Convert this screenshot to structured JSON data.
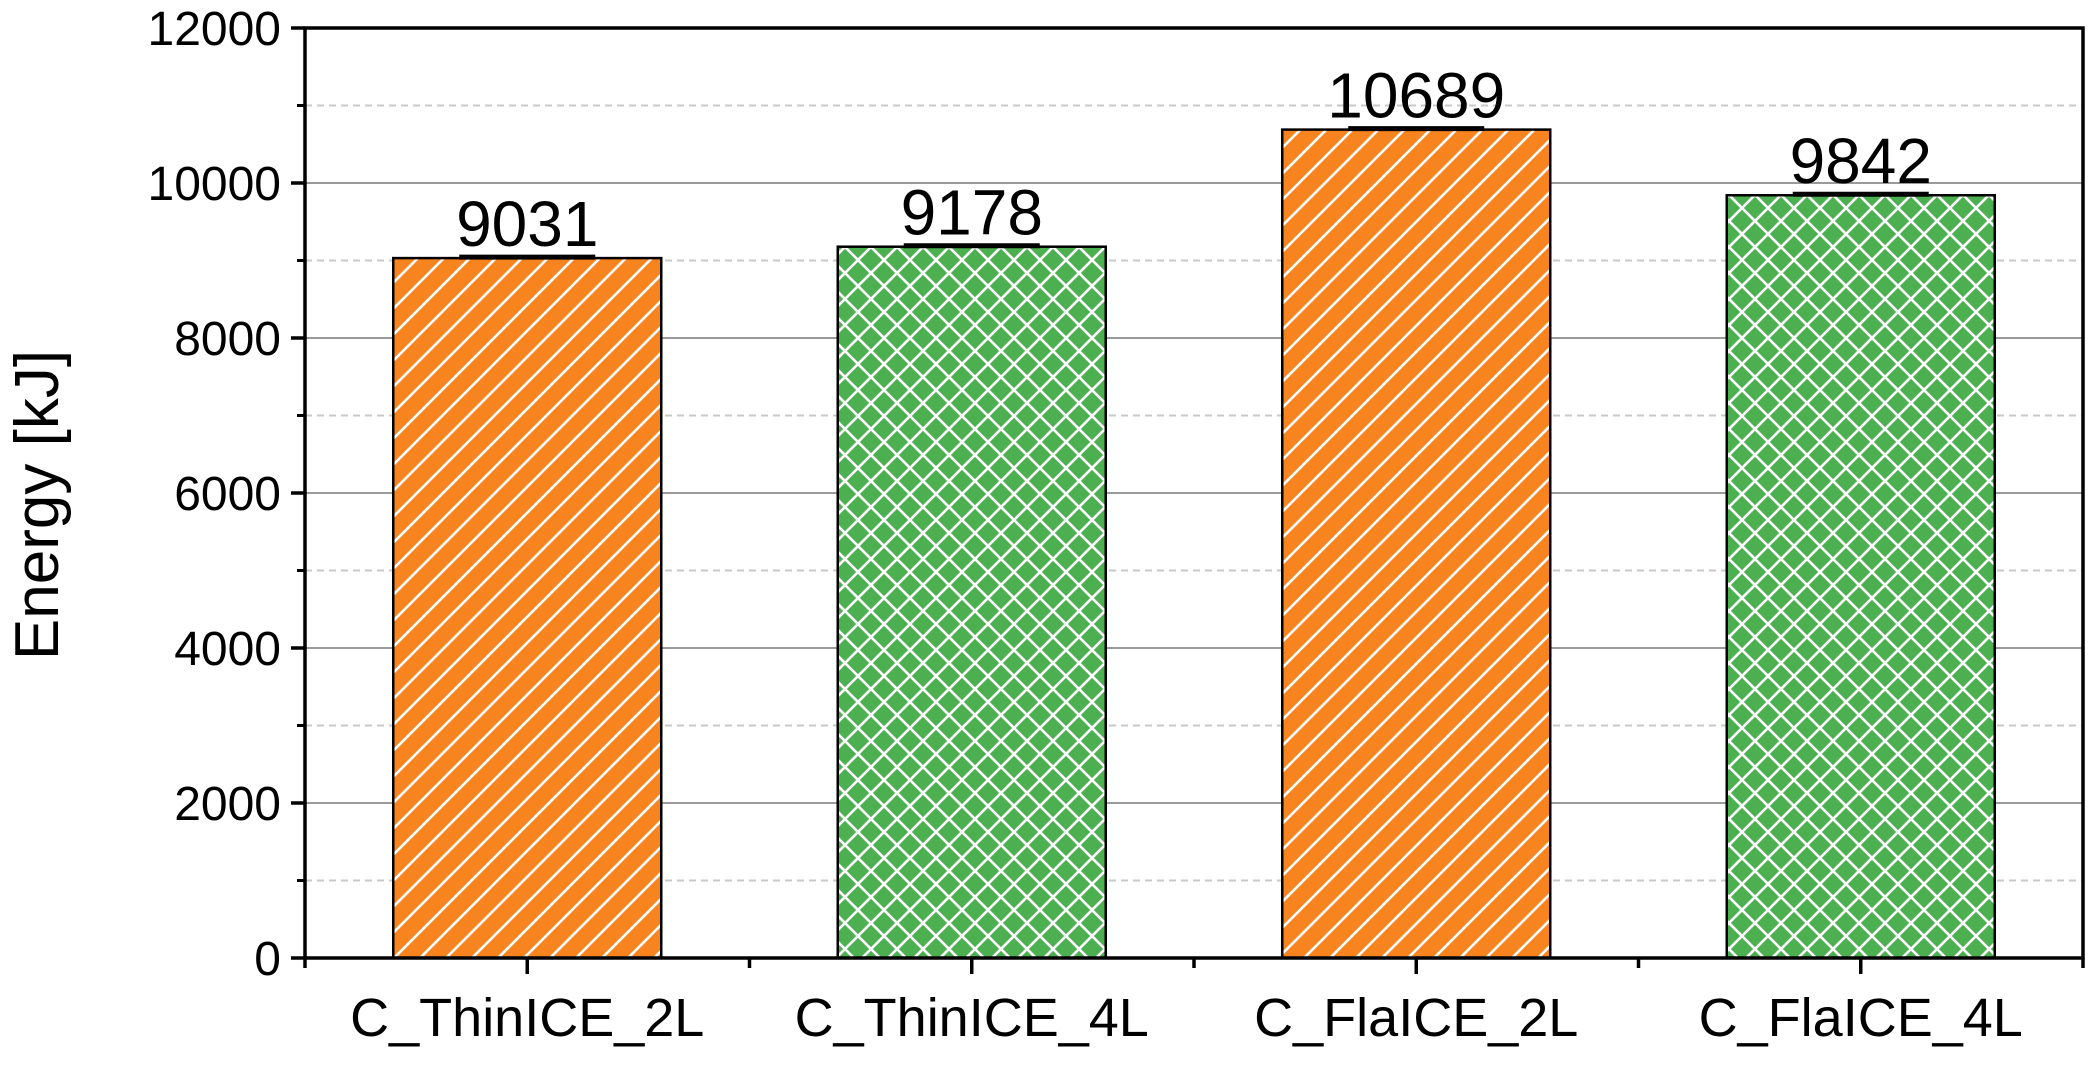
{
  "chart_data": {
    "type": "bar",
    "title": "",
    "xlabel": "",
    "ylabel": "Energy [kJ]",
    "ylim": [
      0,
      12000
    ],
    "yticks": [
      0,
      2000,
      4000,
      6000,
      8000,
      10000,
      12000
    ],
    "y_minor_step": 1000,
    "grid": {
      "major": true,
      "minor": true
    },
    "categories": [
      "C_ThinICE_2L",
      "C_ThinICE_4L",
      "C_FlaICE_2L",
      "C_FlaICE_4L"
    ],
    "values": [
      9031,
      9178,
      10689,
      9842
    ],
    "data_labels": [
      "9031",
      "9178",
      "10689",
      "9842"
    ],
    "bar_patterns": [
      "diagonal",
      "crosshatch",
      "diagonal",
      "crosshatch"
    ],
    "colors": {
      "orange": "#F7841F",
      "green": "#4CAF50",
      "bar_fills": [
        "#F7841F",
        "#4CAF50",
        "#F7841F",
        "#4CAF50"
      ],
      "major_grid": "#9a9a9a",
      "minor_grid": "#c8c8c8",
      "axis": "#000000"
    }
  }
}
